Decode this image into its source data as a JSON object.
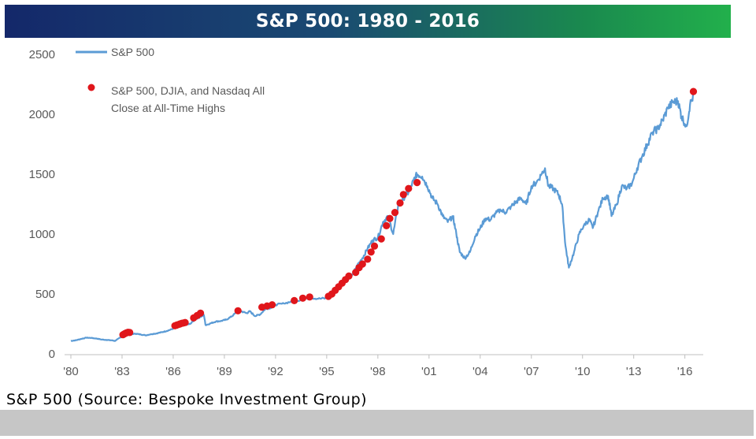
{
  "chart_data": {
    "type": "line",
    "title": "S&P 500: 1980 - 2016",
    "xlabel": "",
    "ylabel": "",
    "ylim": [
      0,
      2500
    ],
    "xlim": [
      1980,
      2016.8
    ],
    "yticks": [
      0,
      500,
      1000,
      1500,
      2000,
      2500
    ],
    "xticks": [
      "'80",
      "'83",
      "'86",
      "'89",
      "'92",
      "'95",
      "'98",
      "'01",
      "'04",
      "'07",
      "'10",
      "'13",
      "'16"
    ],
    "grid": false,
    "legend_position": "top-left",
    "line_color": "#5b9bd5",
    "marker_color": "#e0161b",
    "series": [
      {
        "name": "S&P 500",
        "x": [
          1980.0,
          1980.3,
          1980.6,
          1980.9,
          1981.2,
          1981.5,
          1981.8,
          1982.1,
          1982.4,
          1982.6,
          1982.9,
          1983.2,
          1983.5,
          1983.8,
          1984.1,
          1984.4,
          1984.7,
          1985.0,
          1985.3,
          1985.6,
          1985.9,
          1986.2,
          1986.5,
          1986.8,
          1987.0,
          1987.3,
          1987.6,
          1987.8,
          1987.9,
          1988.2,
          1988.5,
          1988.8,
          1989.1,
          1989.4,
          1989.7,
          1990.0,
          1990.3,
          1990.5,
          1990.8,
          1991.1,
          1991.4,
          1991.7,
          1992.0,
          1992.5,
          1993.0,
          1993.5,
          1994.0,
          1994.5,
          1995.0,
          1995.3,
          1995.6,
          1995.9,
          1996.2,
          1996.5,
          1996.8,
          1997.1,
          1997.4,
          1997.7,
          1998.0,
          1998.3,
          1998.6,
          1998.9,
          1999.2,
          1999.5,
          1999.8,
          2000.1,
          2000.3,
          2000.6,
          2000.9,
          2001.2,
          2001.5,
          2001.8,
          2002.1,
          2002.4,
          2002.6,
          2002.8,
          2003.1,
          2003.4,
          2003.7,
          2004.0,
          2004.3,
          2004.6,
          2004.9,
          2005.2,
          2005.5,
          2005.8,
          2006.1,
          2006.4,
          2006.7,
          2007.0,
          2007.3,
          2007.6,
          2007.8,
          2008.0,
          2008.3,
          2008.6,
          2008.8,
          2009.0,
          2009.2,
          2009.5,
          2009.8,
          2010.1,
          2010.4,
          2010.6,
          2010.9,
          2011.2,
          2011.5,
          2011.7,
          2012.0,
          2012.3,
          2012.6,
          2012.9,
          2013.2,
          2013.5,
          2013.8,
          2014.1,
          2014.4,
          2014.7,
          2015.0,
          2015.3,
          2015.6,
          2015.8,
          2016.1,
          2016.3,
          2016.6
        ],
        "values": [
          108,
          114,
          125,
          135,
          133,
          128,
          120,
          116,
          113,
          108,
          138,
          150,
          165,
          168,
          162,
          155,
          165,
          170,
          180,
          190,
          205,
          225,
          240,
          245,
          250,
          290,
          310,
          325,
          240,
          255,
          270,
          275,
          285,
          310,
          345,
          355,
          340,
          355,
          315,
          330,
          375,
          385,
          410,
          420,
          440,
          450,
          470,
          460,
          465,
          500,
          560,
          600,
          650,
          660,
          740,
          800,
          880,
          950,
          970,
          1100,
          1150,
          1000,
          1250,
          1300,
          1350,
          1450,
          1500,
          1480,
          1400,
          1300,
          1250,
          1150,
          1100,
          1150,
          1000,
          850,
          800,
          850,
          980,
          1050,
          1130,
          1120,
          1170,
          1200,
          1180,
          1230,
          1270,
          1300,
          1250,
          1400,
          1430,
          1500,
          1550,
          1400,
          1380,
          1330,
          1250,
          900,
          720,
          850,
          1000,
          1080,
          1120,
          1050,
          1180,
          1300,
          1320,
          1150,
          1250,
          1400,
          1380,
          1420,
          1550,
          1650,
          1750,
          1850,
          1880,
          1950,
          2050,
          2100,
          2110,
          1980,
          1900,
          2080,
          2190
        ]
      },
      {
        "name": "S&P 500, DJIA, and Nasdaq All\nClose at All-Time Highs",
        "x": [
          1983.05,
          1983.15,
          1983.25,
          1983.35,
          1983.45,
          1986.1,
          1986.2,
          1986.3,
          1986.4,
          1986.5,
          1986.6,
          1986.7,
          1987.2,
          1987.4,
          1987.6,
          1989.8,
          1991.2,
          1991.5,
          1991.8,
          1993.1,
          1993.6,
          1994.0,
          1995.1,
          1995.3,
          1995.5,
          1995.7,
          1995.9,
          1996.1,
          1996.3,
          1996.7,
          1996.9,
          1997.1,
          1997.4,
          1997.6,
          1997.8,
          1998.2,
          1998.5,
          1998.7,
          1999.0,
          1999.3,
          1999.5,
          1999.8,
          2000.3,
          2016.5
        ],
        "values": [
          160,
          168,
          175,
          180,
          178,
          235,
          240,
          245,
          250,
          255,
          258,
          262,
          300,
          320,
          340,
          360,
          390,
          400,
          410,
          445,
          465,
          475,
          480,
          500,
          530,
          560,
          590,
          620,
          650,
          680,
          720,
          750,
          790,
          850,
          900,
          960,
          1070,
          1130,
          1180,
          1260,
          1330,
          1380,
          1430,
          2190
        ]
      }
    ]
  },
  "legend": {
    "line_label": "S&P 500",
    "marker_label_line1": "S&P 500, DJIA, and Nasdaq All",
    "marker_label_line2": "Close at All-Time Highs"
  },
  "caption": "S&P 500 (Source: Bespoke Investment Group)"
}
